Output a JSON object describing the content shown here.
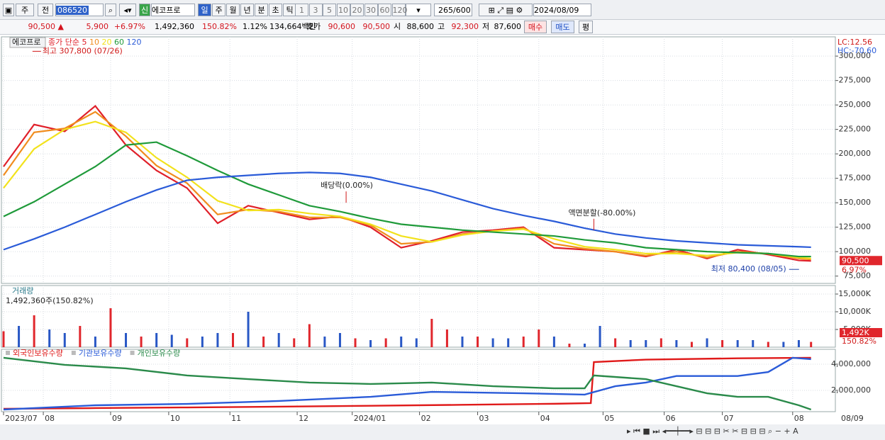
{
  "toolbar": {
    "period": "주",
    "mode": "전",
    "code": "086520",
    "name": "에코프로",
    "intervals": [
      "일",
      "주",
      "월",
      "년",
      "분",
      "초",
      "틱"
    ],
    "counts": [
      "1",
      "3",
      "5",
      "10",
      "20",
      "30",
      "60",
      "120"
    ],
    "bars": "265",
    "max": "/600",
    "date": "2024/08/09"
  },
  "quote": {
    "price": "90,500 ▲",
    "change": "5,900",
    "change_pct": "+6.97%",
    "volume": "1,492,360",
    "volume_ratio": "150.82%",
    "turnover": "1.12%",
    "amount": "134,664백만",
    "ask_label": "호가",
    "ask": "90,600",
    "bid": "90,500",
    "open_label": "시",
    "open": "88,600",
    "high_label": "고",
    "high": "92,300",
    "low_label": "저",
    "low": "87,600",
    "buy": "매수",
    "sell": "매도",
    "avg": "평"
  },
  "chart_data": [
    {
      "type": "line",
      "title": "에코프로",
      "legend_label": "종가 단순",
      "xlim": [
        0,
        265
      ],
      "xticks": [
        {
          "value": 0,
          "label": "2023/07"
        },
        {
          "value": 13,
          "label": "08"
        },
        {
          "value": 35,
          "label": "09"
        },
        {
          "value": 54,
          "label": "10"
        },
        {
          "value": 74,
          "label": "11"
        },
        {
          "value": 96,
          "label": "12"
        },
        {
          "value": 114,
          "label": "2024/01"
        },
        {
          "value": 136,
          "label": "02"
        },
        {
          "value": 155,
          "label": "03"
        },
        {
          "value": 175,
          "label": "04"
        },
        {
          "value": 196,
          "label": "05"
        },
        {
          "value": 216,
          "label": "06"
        },
        {
          "value": 235,
          "label": "07"
        },
        {
          "value": 258,
          "label": "08"
        }
      ],
      "end_label": "08/09",
      "ylim": [
        67500,
        317500
      ],
      "yticks": [
        {
          "value": 75000,
          "label": "75,000"
        },
        {
          "value": 100000,
          "label": "100,000"
        },
        {
          "value": 125000,
          "label": "125,000"
        },
        {
          "value": 150000,
          "label": "150,000"
        },
        {
          "value": 175000,
          "label": "175,000"
        },
        {
          "value": 200000,
          "label": "200,000"
        },
        {
          "value": 225000,
          "label": "225,000"
        },
        {
          "value": 250000,
          "label": "250,000"
        },
        {
          "value": 275000,
          "label": "275,000"
        },
        {
          "value": 300000,
          "label": "300,000"
        }
      ],
      "grid": true,
      "series": [
        {
          "name": "5",
          "color": "#e0202a",
          "x": [
            0,
            10,
            20,
            30,
            40,
            50,
            60,
            70,
            80,
            90,
            100,
            110,
            120,
            130,
            140,
            150,
            160,
            170,
            180,
            190,
            200,
            210,
            220,
            230,
            240,
            250,
            260,
            264
          ],
          "values": [
            187000,
            230000,
            223000,
            249000,
            209000,
            183000,
            165000,
            129000,
            147000,
            140000,
            133000,
            136000,
            125000,
            104000,
            111000,
            120000,
            122000,
            125000,
            104000,
            102000,
            100000,
            95000,
            102000,
            93000,
            102000,
            97000,
            91000,
            90500
          ]
        },
        {
          "name": "10",
          "color": "#f08c1e",
          "x": [
            0,
            10,
            20,
            30,
            40,
            50,
            60,
            70,
            80,
            90,
            100,
            110,
            120,
            130,
            140,
            150,
            160,
            170,
            180,
            190,
            200,
            210,
            220,
            230,
            240,
            250,
            260,
            264
          ],
          "values": [
            178000,
            222000,
            226000,
            243000,
            218000,
            188000,
            170000,
            138000,
            143000,
            141000,
            135000,
            135000,
            127000,
            108000,
            110000,
            118000,
            121000,
            124000,
            108000,
            103000,
            100000,
            96000,
            100000,
            94000,
            100000,
            98000,
            93000,
            92000
          ]
        },
        {
          "name": "20",
          "color": "#f2e21c",
          "x": [
            0,
            10,
            20,
            30,
            40,
            50,
            60,
            70,
            80,
            90,
            100,
            110,
            120,
            130,
            140,
            150,
            160,
            170,
            180,
            190,
            200,
            210,
            220,
            230,
            240,
            250,
            260,
            264
          ],
          "values": [
            165000,
            205000,
            225000,
            233000,
            222000,
            196000,
            176000,
            152000,
            142000,
            143000,
            139000,
            136000,
            128000,
            116000,
            110000,
            117000,
            121000,
            123000,
            113000,
            105000,
            102000,
            98000,
            98000,
            96000,
            99000,
            98000,
            94000,
            93000
          ]
        },
        {
          "name": "60",
          "color": "#1f9a3a",
          "x": [
            0,
            10,
            20,
            30,
            40,
            50,
            60,
            70,
            80,
            90,
            100,
            110,
            120,
            130,
            140,
            150,
            160,
            170,
            180,
            190,
            200,
            210,
            220,
            230,
            240,
            250,
            260,
            264
          ],
          "values": [
            136000,
            151000,
            169000,
            187000,
            209000,
            212000,
            198000,
            183000,
            169000,
            158000,
            147000,
            141000,
            134000,
            128000,
            125000,
            122000,
            120000,
            118000,
            116000,
            112000,
            109000,
            104000,
            102000,
            100000,
            99000,
            98000,
            95000,
            95000
          ]
        },
        {
          "name": "120",
          "color": "#2a5bd8",
          "x": [
            0,
            10,
            20,
            30,
            40,
            50,
            60,
            70,
            80,
            90,
            100,
            110,
            120,
            130,
            140,
            150,
            160,
            170,
            180,
            190,
            200,
            210,
            220,
            230,
            240,
            250,
            260,
            264
          ],
          "values": [
            102000,
            113000,
            125000,
            138000,
            151000,
            163000,
            173000,
            176000,
            178000,
            180000,
            181000,
            180000,
            176000,
            169000,
            162000,
            153000,
            144000,
            137000,
            131000,
            124000,
            118000,
            114000,
            111000,
            109000,
            107000,
            106000,
            105000,
            104500
          ]
        }
      ],
      "annotations": [
        {
          "text": "최고 307,800 (07/26)",
          "x": 9,
          "value": 307800
        },
        {
          "text": "최저 80,400 (08/05)",
          "x": 261,
          "value": 80400
        },
        {
          "text": "배당락(0.00%)",
          "x": 112,
          "value": 150000
        },
        {
          "text": "액면분할(-80.00%)",
          "x": 193,
          "value": 122000
        }
      ],
      "lc": "LC:12.56",
      "hc": "HC:-70.60",
      "last": 90500,
      "last_label": "90,500",
      "last_pct": "6.97%"
    },
    {
      "type": "bar",
      "title": "거래량",
      "value_label": "1,492,360주(150.82%)",
      "xlim": [
        0,
        265
      ],
      "ylim": [
        0,
        17000000
      ],
      "yticks": [
        {
          "value": 5000000,
          "label": "5,000K"
        },
        {
          "value": 10000000,
          "label": "10,000K"
        },
        {
          "value": 15000000,
          "label": "15,000K"
        }
      ],
      "x": [
        0,
        5,
        10,
        15,
        20,
        25,
        30,
        35,
        40,
        45,
        50,
        55,
        60,
        65,
        70,
        75,
        80,
        85,
        90,
        95,
        100,
        105,
        110,
        115,
        120,
        125,
        130,
        135,
        140,
        145,
        150,
        155,
        160,
        165,
        170,
        175,
        180,
        185,
        190,
        195,
        200,
        205,
        210,
        215,
        220,
        225,
        230,
        235,
        240,
        245,
        250,
        255,
        260,
        264
      ],
      "values": [
        4500000,
        6000000,
        9000000,
        5000000,
        4000000,
        6000000,
        3000000,
        11000000,
        4000000,
        3000000,
        4000000,
        3500000,
        2500000,
        3000000,
        4000000,
        4000000,
        10000000,
        3000000,
        4000000,
        2500000,
        6500000,
        3000000,
        4000000,
        2500000,
        2000000,
        2500000,
        3000000,
        2500000,
        8000000,
        5000000,
        3000000,
        3000000,
        2500000,
        2500000,
        3000000,
        5000000,
        3000000,
        1000000,
        1000000,
        6000000,
        2500000,
        2000000,
        2000000,
        2500000,
        2000000,
        1500000,
        2500000,
        2000000,
        2000000,
        2000000,
        1500000,
        1500000,
        2000000,
        1492360
      ],
      "colors": [
        "#e0262c",
        "#2857c5",
        "#e0262c",
        "#2857c5",
        "#2857c5",
        "#e0262c",
        "#2857c5",
        "#e0262c",
        "#2857c5",
        "#e0262c",
        "#2857c5",
        "#2857c5",
        "#e0262c",
        "#2857c5",
        "#2857c5",
        "#e0262c",
        "#2857c5",
        "#e0262c",
        "#2857c5",
        "#e0262c",
        "#e0262c",
        "#2857c5",
        "#2857c5",
        "#e0262c",
        "#2857c5",
        "#e0262c",
        "#2857c5",
        "#2857c5",
        "#e0262c",
        "#e0262c",
        "#2857c5",
        "#e0262c",
        "#2857c5",
        "#2857c5",
        "#e0262c",
        "#e0262c",
        "#2857c5",
        "#e0262c",
        "#2857c5",
        "#2857c5",
        "#e0262c",
        "#2857c5",
        "#2857c5",
        "#e0262c",
        "#2857c5",
        "#e0262c",
        "#2857c5",
        "#e0262c",
        "#2857c5",
        "#2857c5",
        "#e0262c",
        "#2857c5",
        "#2857c5",
        "#e0262c"
      ],
      "last_label": "1,492K",
      "last_ratio": "150.82%"
    },
    {
      "type": "line",
      "xlim": [
        0,
        265
      ],
      "ylim": [
        432000,
        5027000
      ],
      "yticks": [
        {
          "value": 2000000,
          "label": "2,000,000"
        },
        {
          "value": 4000000,
          "label": "4,000,000"
        }
      ],
      "series": [
        {
          "name": "외국인보유수량",
          "color": "#e01a1a",
          "x": [
            0,
            30,
            60,
            90,
            120,
            150,
            180,
            192,
            193,
            210,
            240,
            264
          ],
          "values": [
            595000,
            650000,
            700000,
            760000,
            830000,
            900000,
            980000,
            1030000,
            4160000,
            4350000,
            4450000,
            4490000
          ]
        },
        {
          "name": "기관보유수량",
          "color": "#2a5bd8",
          "x": [
            0,
            30,
            60,
            90,
            120,
            140,
            170,
            190,
            200,
            210,
            220,
            230,
            240,
            250,
            258,
            264
          ],
          "values": [
            540000,
            865000,
            970000,
            1190000,
            1510000,
            1890000,
            1780000,
            1680000,
            2320000,
            2600000,
            3100000,
            3100000,
            3100000,
            3400000,
            4490000,
            4380000
          ]
        },
        {
          "name": "개인보유수량",
          "color": "#2a8a4a",
          "x": [
            0,
            20,
            40,
            60,
            80,
            100,
            120,
            140,
            160,
            180,
            190,
            193,
            210,
            220,
            230,
            240,
            250,
            260,
            264
          ],
          "values": [
            4490000,
            3950000,
            3680000,
            3140000,
            2860000,
            2600000,
            2490000,
            2600000,
            2320000,
            2160000,
            2160000,
            3140000,
            2860000,
            2320000,
            1780000,
            1510000,
            1510000,
            865000,
            540000
          ]
        }
      ]
    }
  ]
}
